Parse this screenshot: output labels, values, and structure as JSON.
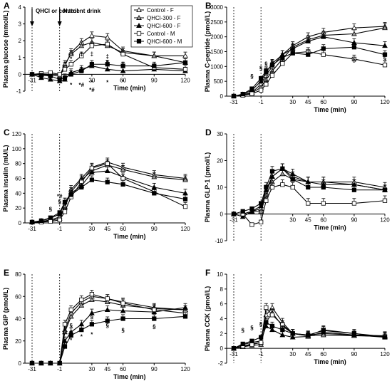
{
  "chart_data": [
    {
      "panel": "A",
      "type": "line",
      "ylabel": "Plasma glucose (mmol/L)",
      "xlabel": "Time (min)",
      "ylim": [
        -1,
        4
      ],
      "yticks": [
        "-1",
        "0",
        "1",
        "2",
        "3",
        "4"
      ],
      "x": [
        -31,
        -21,
        -11,
        -1,
        4,
        10,
        20,
        30,
        45,
        60,
        90,
        120
      ],
      "xticks": [
        "-31",
        "-1",
        "30",
        "60",
        "90",
        "120"
      ],
      "annotations": {
        "events": [
          "QHCl or control",
          "Nutrient drink"
        ],
        "marks": [
          {
            "x": 10,
            "y": 0.8,
            "text": "*"
          },
          {
            "x": 20,
            "y": 1.1,
            "text": "‡"
          },
          {
            "x": 30,
            "y": 1.1,
            "text": "‡"
          },
          {
            "x": 45,
            "y": 0.95,
            "text": "‡"
          },
          {
            "x": 45,
            "y": 0.6,
            "text": "§"
          },
          {
            "x": 60,
            "y": 0.5,
            "text": "†"
          },
          {
            "x": 60,
            "y": -0.55,
            "text": "*"
          },
          {
            "x": 20,
            "y": -0.75,
            "text": "*#"
          },
          {
            "x": 10,
            "y": -0.75,
            "text": "*"
          },
          {
            "x": 30,
            "y": -0.6,
            "text": "*"
          },
          {
            "x": 45,
            "y": -0.6,
            "text": "*"
          },
          {
            "x": 30,
            "y": -1.05,
            "text": "*#"
          }
        ]
      },
      "series": [
        {
          "name": "Control - F",
          "values": [
            0,
            0,
            -0.05,
            -0.1,
            0.5,
            1.3,
            1.9,
            2.3,
            2.2,
            1.4,
            1.1,
            1.1
          ]
        },
        {
          "name": "QHCl-300 - F",
          "values": [
            0,
            0,
            -0.05,
            -0.1,
            0.6,
            1.2,
            1.7,
            1.9,
            1.7,
            1.3,
            1.1,
            0.7
          ]
        },
        {
          "name": "QHCl-600 - F",
          "values": [
            0,
            -0.2,
            -0.3,
            -0.4,
            -0.3,
            0.1,
            0.3,
            0.5,
            0.3,
            0.2,
            0.3,
            0.2
          ]
        },
        {
          "name": "Control - M",
          "values": [
            0,
            0.05,
            0.1,
            0,
            0.3,
            0.6,
            1.1,
            1.7,
            1.8,
            1.2,
            0.4,
            0.3
          ]
        },
        {
          "name": "QHCl-600 - M",
          "values": [
            0,
            -0.05,
            -0.1,
            -0.3,
            -0.2,
            0,
            0.2,
            0.6,
            0.6,
            0.5,
            0.5,
            0.7
          ]
        }
      ]
    },
    {
      "panel": "B",
      "type": "line",
      "ylabel": "Plasma C-peptide (pmol/L)",
      "xlabel": "Time (min)",
      "ylim": [
        0,
        3000
      ],
      "yticks": [
        "0",
        "500",
        "1000",
        "1500",
        "2000",
        "2500",
        "3000"
      ],
      "x": [
        -31,
        -21,
        -11,
        -1,
        4,
        10,
        20,
        30,
        45,
        60,
        90,
        120
      ],
      "xticks": [
        "-31",
        "-1",
        "30",
        "45",
        "60",
        "90",
        "120"
      ],
      "annotations": {
        "marks": [
          {
            "x": -11,
            "y": 600,
            "text": "§"
          },
          {
            "x": -1,
            "y": 880,
            "text": "§"
          },
          {
            "x": 4,
            "y": 1020,
            "text": "§"
          },
          {
            "x": 10,
            "y": 1100,
            "text": "§"
          },
          {
            "x": 90,
            "y": 1150,
            "text": "§"
          },
          {
            "x": 120,
            "y": 1200,
            "text": "§"
          }
        ]
      },
      "series": [
        {
          "name": "Control - F",
          "values": [
            0,
            50,
            120,
            400,
            700,
            1000,
            1400,
            1700,
            2000,
            2150,
            2300,
            2350
          ]
        },
        {
          "name": "QHCl-300 - F",
          "values": [
            0,
            40,
            100,
            300,
            550,
            850,
            1250,
            1650,
            1900,
            2050,
            2100,
            2300
          ]
        },
        {
          "name": "QHCl-600 - F",
          "values": [
            0,
            60,
            200,
            500,
            800,
            1100,
            1400,
            1600,
            1850,
            2000,
            1800,
            1700
          ]
        },
        {
          "name": "Control - M",
          "values": [
            0,
            30,
            80,
            200,
            400,
            700,
            1100,
            1450,
            1500,
            1400,
            1250,
            1050
          ]
        },
        {
          "name": "QHCl-600 - M",
          "values": [
            0,
            70,
            250,
            600,
            850,
            1050,
            1300,
            1450,
            1400,
            1600,
            1650,
            1400
          ]
        }
      ]
    },
    {
      "panel": "C",
      "type": "line",
      "ylabel": "Plasma insulin (mU/L)",
      "xlabel": "Time (min)",
      "ylim": [
        0,
        120
      ],
      "yticks": [
        "0",
        "20",
        "40",
        "60",
        "80",
        "100",
        "120"
      ],
      "x": [
        -31,
        -21,
        -11,
        -1,
        4,
        10,
        20,
        30,
        45,
        60,
        90,
        120
      ],
      "xticks": [
        "-31",
        "-1",
        "30",
        "45",
        "60",
        "90",
        "120"
      ],
      "annotations": {
        "marks": [
          {
            "x": -11,
            "y": 16,
            "text": "§"
          },
          {
            "x": -1,
            "y": 26,
            "text": "§"
          },
          {
            "x": -1,
            "y": 33,
            "text": "*#"
          }
        ]
      },
      "series": [
        {
          "name": "Control - F",
          "values": [
            1,
            2,
            3,
            6,
            20,
            45,
            60,
            75,
            82,
            75,
            65,
            60
          ]
        },
        {
          "name": "QHCl-300 - F",
          "values": [
            1,
            2,
            4,
            8,
            22,
            42,
            58,
            70,
            78,
            72,
            62,
            58
          ]
        },
        {
          "name": "QHCl-600 - F",
          "values": [
            1,
            3,
            6,
            12,
            28,
            40,
            50,
            68,
            70,
            62,
            48,
            40
          ]
        },
        {
          "name": "Control - M",
          "values": [
            1,
            1,
            2,
            4,
            15,
            35,
            55,
            74,
            80,
            60,
            42,
            22
          ]
        },
        {
          "name": "QHCl-600 - M",
          "values": [
            1,
            3,
            7,
            14,
            28,
            38,
            48,
            58,
            55,
            52,
            40,
            32
          ]
        }
      ]
    },
    {
      "panel": "D",
      "type": "line",
      "ylabel": "Plasma GLP-1 (pmol/L)",
      "xlabel": "Time (min)",
      "ylim": [
        -10,
        30
      ],
      "yticks": [
        "-10",
        "0",
        "10",
        "20",
        "30"
      ],
      "x": [
        -31,
        -21,
        -11,
        -1,
        4,
        10,
        20,
        30,
        45,
        60,
        90,
        120
      ],
      "xticks": [
        "-31",
        "-1",
        "30",
        "45",
        "60",
        "90",
        "120"
      ],
      "series": [
        {
          "name": "Control - F",
          "values": [
            0,
            0,
            1,
            2,
            8,
            14,
            17,
            14,
            12,
            12,
            12,
            10
          ]
        },
        {
          "name": "QHCl-300 - F",
          "values": [
            0,
            0,
            1,
            1,
            7,
            12,
            15,
            13,
            12,
            12,
            11,
            9
          ]
        },
        {
          "name": "QHCl-600 - F",
          "values": [
            0,
            -1,
            1,
            3,
            9,
            14,
            17,
            15,
            12,
            11,
            11,
            9
          ]
        },
        {
          "name": "Control - M",
          "values": [
            0,
            0,
            -4,
            -3,
            5,
            10,
            11,
            10,
            4,
            4,
            4,
            5
          ]
        },
        {
          "name": "QHCl-600 - M",
          "values": [
            0,
            1,
            2,
            4,
            10,
            16,
            17,
            13,
            10,
            10,
            9,
            9
          ]
        }
      ]
    },
    {
      "panel": "E",
      "type": "line",
      "ylabel": "Plasma GIP (pmol/L)",
      "xlabel": "Time (min)",
      "ylim": [
        0,
        80
      ],
      "yticks": [
        "0",
        "20",
        "40",
        "60",
        "80"
      ],
      "x": [
        -31,
        -21,
        -11,
        -1,
        4,
        10,
        20,
        30,
        45,
        60,
        90,
        120
      ],
      "xticks": [
        "-31",
        "-1",
        "30",
        "45",
        "60",
        "90",
        "120"
      ],
      "annotations": {
        "marks": [
          {
            "x": 10,
            "y": 19,
            "text": "*"
          },
          {
            "x": 20,
            "y": 22,
            "text": "*"
          },
          {
            "x": 30,
            "y": 24,
            "text": "*"
          },
          {
            "x": 4,
            "y": 27,
            "text": "§"
          },
          {
            "x": 10,
            "y": 32,
            "text": "§"
          },
          {
            "x": 30,
            "y": 40,
            "text": "§"
          },
          {
            "x": 45,
            "y": 32,
            "text": "§"
          },
          {
            "x": 60,
            "y": 28,
            "text": "§"
          },
          {
            "x": 90,
            "y": 31,
            "text": "§"
          }
        ]
      },
      "series": [
        {
          "name": "Control - F",
          "values": [
            0,
            0,
            0,
            0,
            30,
            45,
            55,
            60,
            58,
            55,
            50,
            48
          ]
        },
        {
          "name": "QHCl-300 - F",
          "values": [
            0,
            0,
            0,
            0,
            28,
            42,
            52,
            57,
            55,
            52,
            49,
            48
          ]
        },
        {
          "name": "QHCl-600 - F",
          "values": [
            0,
            0,
            0,
            0,
            20,
            28,
            35,
            45,
            48,
            47,
            46,
            50
          ]
        },
        {
          "name": "Control - M",
          "values": [
            0,
            0,
            0,
            0,
            35,
            48,
            57,
            62,
            58,
            54,
            48,
            45
          ]
        },
        {
          "name": "QHCl-600 - M",
          "values": [
            0,
            0,
            0,
            0,
            15,
            25,
            30,
            35,
            38,
            40,
            40,
            42
          ]
        }
      ]
    },
    {
      "panel": "F",
      "type": "line",
      "ylabel": "Plasma CCK (pmol/L)",
      "xlabel": "Time (min)",
      "ylim": [
        -2,
        10
      ],
      "yticks": [
        "-2",
        "0",
        "2",
        "4",
        "6",
        "8",
        "10"
      ],
      "x": [
        -31,
        -21,
        -11,
        -1,
        4,
        10,
        20,
        30,
        45,
        60,
        90,
        120
      ],
      "xticks": [
        "-31",
        "-1",
        "30",
        "45",
        "60",
        "90",
        "120"
      ],
      "annotations": {
        "marks": [
          {
            "x": -21,
            "y": 2.2,
            "text": "§"
          },
          {
            "x": -11,
            "y": 2.5,
            "text": "§"
          },
          {
            "x": -1,
            "y": 3.0,
            "text": "§"
          }
        ]
      },
      "series": [
        {
          "name": "Control - F",
          "values": [
            0,
            0.3,
            0.6,
            0.8,
            4.5,
            5.5,
            3.5,
            2.0,
            1.8,
            2.0,
            1.8,
            1.7
          ]
        },
        {
          "name": "QHCl-300 - F",
          "values": [
            0,
            0.2,
            0.4,
            0.5,
            3.5,
            4.8,
            3.0,
            2.0,
            1.7,
            1.8,
            1.7,
            1.6
          ]
        },
        {
          "name": "QHCl-600 - F",
          "values": [
            0,
            0.5,
            0.8,
            1.0,
            3.0,
            2.5,
            1.8,
            1.5,
            1.6,
            2.2,
            1.8,
            1.5
          ]
        },
        {
          "name": "Control - M",
          "values": [
            0,
            0.3,
            0.5,
            0.8,
            5.5,
            4.5,
            3.2,
            2.0,
            1.7,
            2.5,
            2.0,
            1.6
          ]
        },
        {
          "name": "QHCl-600 - M",
          "values": [
            0,
            0.6,
            1.0,
            1.5,
            3.5,
            3.0,
            2.5,
            2.0,
            1.8,
            2.4,
            2.0,
            1.5
          ]
        }
      ]
    }
  ],
  "legend": {
    "entries": [
      {
        "label": "Control - F",
        "marker": "triangle-open"
      },
      {
        "label": "QHCl-300 - F",
        "marker": "triangle-gray"
      },
      {
        "label": "QHCl-600 - F",
        "marker": "triangle-filled"
      },
      {
        "label": "Control - M",
        "marker": "square-open"
      },
      {
        "label": "QHCl-600 - M",
        "marker": "square-filled"
      }
    ]
  },
  "colors": {
    "triangle-open": "#ffffff",
    "triangle-gray": "#9a9a9a",
    "triangle-filled": "#000000",
    "square-open": "#ffffff",
    "square-filled": "#000000",
    "stroke": "#000000"
  }
}
